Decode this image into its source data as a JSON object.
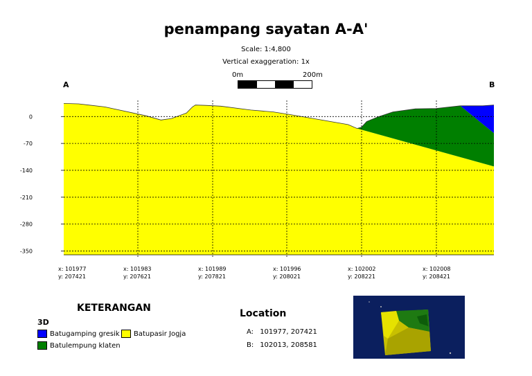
{
  "title": "penampang sayatan A-A'",
  "scale_label": "Scale: 1:4,800",
  "vertical_exaggeration": "Vertical exaggeration: 1x",
  "scalebar": {
    "start": "0m",
    "end": "200m"
  },
  "endpoints": {
    "left": "A",
    "right": "B"
  },
  "chart_data": {
    "type": "area",
    "title": "penampang sayatan A-A'",
    "y_ticks": [
      "0",
      "-70",
      "-140",
      "-210",
      "-280",
      "-350"
    ],
    "ylim": [
      -360,
      42
    ],
    "xlim": [
      0,
      575
    ],
    "grid": true,
    "gridlines_dashed": true,
    "x_ticks": [
      {
        "x": "x: 101977",
        "y": "y: 207421"
      },
      {
        "x": "x: 101983",
        "y": "y: 207621"
      },
      {
        "x": "x: 101989",
        "y": "y: 207821"
      },
      {
        "x": "x: 101996",
        "y": "y: 208021"
      },
      {
        "x": "x: 102002",
        "y": "y: 208221"
      },
      {
        "x": "x: 102008",
        "y": "y: 208421"
      }
    ],
    "surface": [
      [
        0,
        34
      ],
      [
        20,
        33
      ],
      [
        55,
        25
      ],
      [
        110,
        2
      ],
      [
        130,
        -9
      ],
      [
        144,
        -5
      ],
      [
        164,
        9
      ],
      [
        172,
        25
      ],
      [
        176,
        30
      ],
      [
        190,
        29
      ],
      [
        210,
        27
      ],
      [
        250,
        17
      ],
      [
        280,
        12
      ],
      [
        300,
        6
      ],
      [
        330,
        -4
      ],
      [
        380,
        -21
      ],
      [
        392,
        -31
      ],
      [
        398,
        -28
      ],
      [
        405,
        -13
      ],
      [
        420,
        -1
      ],
      [
        440,
        12
      ],
      [
        470,
        20
      ],
      [
        498,
        21
      ],
      [
        530,
        28
      ],
      [
        560,
        28
      ],
      [
        575,
        30
      ]
    ],
    "units": [
      {
        "name": "Batupasir Jogja",
        "color": "#ffff00",
        "polygon": [
          [
            0,
            34
          ],
          [
            20,
            33
          ],
          [
            55,
            25
          ],
          [
            110,
            2
          ],
          [
            130,
            -9
          ],
          [
            144,
            -5
          ],
          [
            164,
            9
          ],
          [
            172,
            25
          ],
          [
            176,
            30
          ],
          [
            190,
            29
          ],
          [
            210,
            27
          ],
          [
            250,
            17
          ],
          [
            280,
            12
          ],
          [
            300,
            6
          ],
          [
            330,
            -4
          ],
          [
            380,
            -21
          ],
          [
            392,
            -31
          ],
          [
            575,
            -130
          ],
          [
            575,
            -360
          ],
          [
            0,
            -360
          ]
        ]
      },
      {
        "name": "Batulempung klaten",
        "color": "#007f00",
        "polygon": [
          [
            392,
            -31
          ],
          [
            398,
            -28
          ],
          [
            405,
            -13
          ],
          [
            420,
            -1
          ],
          [
            440,
            12
          ],
          [
            470,
            20
          ],
          [
            498,
            21
          ],
          [
            530,
            28
          ],
          [
            575,
            -43
          ],
          [
            575,
            -130
          ]
        ]
      },
      {
        "name": "Batugamping gresik",
        "color": "#0000ff",
        "polygon": [
          [
            530,
            28
          ],
          [
            560,
            28
          ],
          [
            575,
            30
          ],
          [
            575,
            -43
          ]
        ]
      }
    ]
  },
  "legend": {
    "title": "KETERANGAN",
    "group": "3D",
    "items": [
      {
        "label": "Batugamping gresik",
        "color": "#0000ff"
      },
      {
        "label": "Batupasir Jogja",
        "color": "#ffff00"
      },
      {
        "label": "Batulempung klaten",
        "color": "#007f00"
      }
    ]
  },
  "location": {
    "title": "Location",
    "rows": [
      {
        "key": "A:",
        "value": "101977, 207421"
      },
      {
        "key": "B:",
        "value": "102013, 208581"
      }
    ]
  }
}
